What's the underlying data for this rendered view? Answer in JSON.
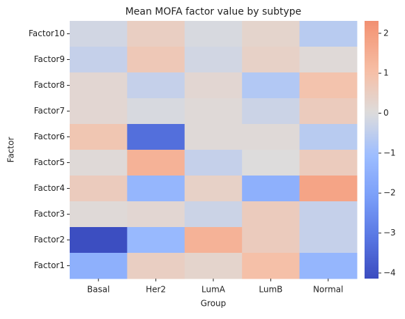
{
  "chart_data": {
    "type": "heatmap",
    "title": "Mean MOFA factor value by subtype",
    "xlabel": "Group",
    "ylabel": "Factor",
    "x": [
      "Basal",
      "Her2",
      "LumA",
      "LumB",
      "Normal"
    ],
    "y": [
      "Factor10",
      "Factor9",
      "Factor8",
      "Factor7",
      "Factor6",
      "Factor5",
      "Factor4",
      "Factor3",
      "Factor2",
      "Factor1"
    ],
    "values": [
      [
        -0.2,
        0.5,
        -0.1,
        0.3,
        -0.6
      ],
      [
        -0.4,
        0.7,
        -0.2,
        0.4,
        0.1
      ],
      [
        0.2,
        -0.4,
        0.2,
        -0.7,
        0.9
      ],
      [
        0.2,
        -0.1,
        0.1,
        -0.3,
        0.6
      ],
      [
        0.8,
        -3.3,
        0.1,
        0.1,
        -0.6
      ],
      [
        0.1,
        1.4,
        -0.4,
        0.0,
        0.6
      ],
      [
        0.6,
        -1.3,
        0.4,
        -1.5,
        1.8
      ],
      [
        0.1,
        0.2,
        -0.3,
        0.6,
        -0.4
      ],
      [
        -4.1,
        -1.2,
        1.4,
        0.6,
        -0.4
      ],
      [
        -1.5,
        0.5,
        0.3,
        1.0,
        -1.3
      ]
    ],
    "colormap": "coolwarm",
    "center": 0,
    "clim": [
      -4.14,
      2.31
    ],
    "cticks": [
      2,
      1,
      0,
      {
        "value": -1,
        "label": "−1"
      },
      {
        "value": -2,
        "label": "−2"
      },
      {
        "value": -3,
        "label": "−3"
      },
      {
        "value": -4,
        "label": "−4"
      }
    ]
  }
}
